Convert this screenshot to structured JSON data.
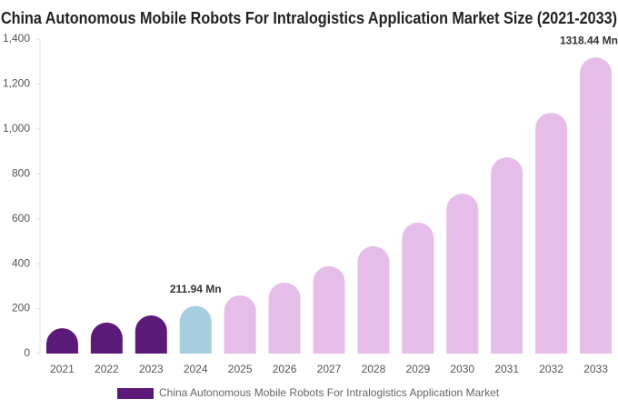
{
  "chart_data": {
    "type": "bar",
    "title": "China Autonomous Mobile Robots For Intralogistics Application Market Size (2021-2033)",
    "categories": [
      "2021",
      "2022",
      "2023",
      "2024",
      "2025",
      "2026",
      "2027",
      "2028",
      "2029",
      "2030",
      "2031",
      "2032",
      "2033"
    ],
    "series": [
      {
        "name": "China Autonomous Mobile Robots For Intralogistics Application Market",
        "color": "#5c1a78",
        "values": [
          113,
          138,
          170,
          211.94,
          259,
          316,
          389,
          478,
          583,
          712,
          874,
          1072,
          1318.44
        ],
        "value_labels": [
          null,
          null,
          null,
          "211.94 Mn",
          null,
          null,
          null,
          null,
          null,
          null,
          null,
          null,
          "1318.44 Mn"
        ],
        "colors": [
          "#5c1a78",
          "#5c1a78",
          "#5c1a78",
          "#a6cde0",
          "#e6bde8",
          "#e6bde8",
          "#e6bde8",
          "#e6bde8",
          "#e6bde8",
          "#e6bde8",
          "#e6bde8",
          "#e6bde8",
          "#e6bde8"
        ]
      }
    ],
    "ylim": [
      0,
      1400
    ],
    "yticks": [
      0,
      200,
      400,
      600,
      800,
      {
        "value": 1000,
        "label": "1,000"
      },
      {
        "value": 1200,
        "label": "1,200"
      },
      {
        "value": 1400,
        "label": "1,400"
      }
    ],
    "grid": false
  }
}
